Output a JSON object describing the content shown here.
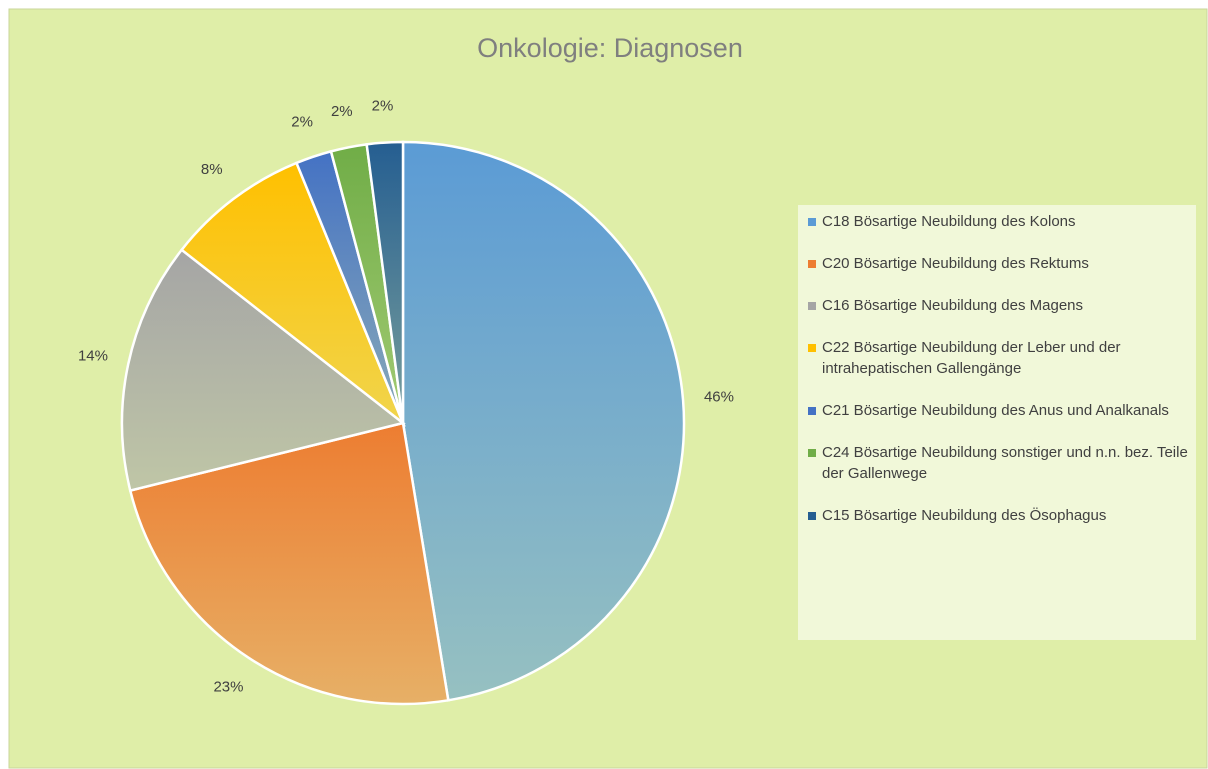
{
  "chart_data": {
    "type": "pie",
    "title": "Onkologie: Diagnosen",
    "categories": [
      "C18 Bösartige Neubildung des Kolons",
      "C20 Bösartige Neubildung des Rektums",
      "C16 Bösartige Neubildung des Magens",
      "C22 Bösartige Neubildung der Leber und der intrahepatischen Gallengänge",
      "C21 Bösartige Neubildung des Anus und Analkanals",
      "C24 Bösartige Neubildung sonstiger und n.n. bez. Teile der Gallenwege",
      "C15 Bösartige Neubildung des Ösophagus"
    ],
    "values": [
      46,
      23,
      14,
      8,
      2,
      2,
      2
    ],
    "value_labels": [
      "46%",
      "23%",
      "14%",
      "8%",
      "2%",
      "2%",
      "2%"
    ],
    "colors": [
      "#5b9bd5",
      "#ed7d31",
      "#a5a5a5",
      "#ffc000",
      "#4472c4",
      "#70ad47",
      "#255e91"
    ],
    "legend": "right"
  }
}
